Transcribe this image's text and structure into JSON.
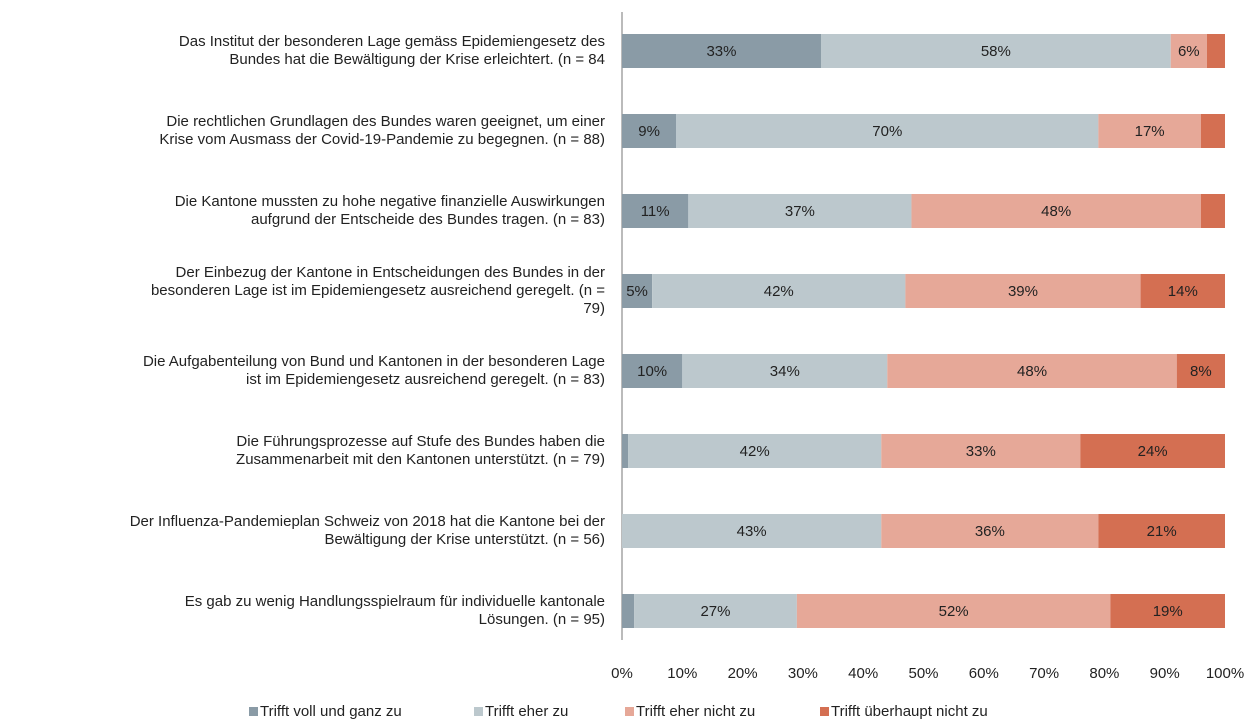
{
  "chart_data": {
    "type": "stacked_barh",
    "categories": [
      "Das Institut der besonderen Lage gemäss Epidemiengesetz des\nBundes hat die Bewältigung der Krise erleichtert. (n = 84",
      "Die rechtlichen Grundlagen des Bundes waren geeignet, um einer\nKrise vom Ausmass der Covid-19-Pandemie zu begegnen. (n = 88)",
      "Die Kantone mussten zu hohe negative finanzielle Auswirkungen\naufgrund der Entscheide des Bundes tragen. (n = 83)",
      "Der Einbezug der Kantone in Entscheidungen des Bundes in der\nbesonderen Lage ist im Epidemiengesetz ausreichend geregelt. (n =\n79)",
      "Die Aufgabenteilung von Bund und Kantonen in der besonderen Lage\nist im Epidemiengesetz ausreichend geregelt. (n = 83)",
      "Die Führungsprozesse auf Stufe des Bundes haben die\nZusammenarbeit mit den Kantonen unterstützt. (n = 79)",
      "Der Influenza-Pandemieplan Schweiz von 2018 hat die Kantone bei der\nBewältigung der Krise unterstützt. (n = 56)",
      "Es gab zu wenig Handlungsspielraum für individuelle kantonale\nLösungen. (n = 95)"
    ],
    "series": [
      {
        "name": "Trifft voll und ganz zu",
        "color": "#8a9ba6",
        "values": [
          33,
          9,
          11,
          5,
          10,
          1,
          0,
          2
        ],
        "value_labels": [
          "33%",
          "9%",
          "11%",
          "5%",
          "10%",
          null,
          null,
          null
        ]
      },
      {
        "name": "Trifft eher zu",
        "color": "#bcc8cd",
        "values": [
          58,
          70,
          37,
          42,
          34,
          42,
          43,
          27
        ],
        "value_labels": [
          "58%",
          "70%",
          "37%",
          "42%",
          "34%",
          "42%",
          "43%",
          "27%"
        ]
      },
      {
        "name": "Trifft eher nicht zu",
        "color": "#e6a898",
        "values": [
          6,
          17,
          48,
          39,
          48,
          33,
          36,
          52
        ],
        "value_labels": [
          "6%",
          "17%",
          "48%",
          "39%",
          "48%",
          "33%",
          "36%",
          "52%"
        ]
      },
      {
        "name": "Trifft überhaupt nicht zu",
        "color": "#d46f52",
        "values": [
          3,
          4,
          4,
          14,
          8,
          24,
          21,
          19
        ],
        "value_labels": [
          null,
          null,
          null,
          "14%",
          "8%",
          "24%",
          "21%",
          "19%"
        ]
      }
    ],
    "xlim": [
      0,
      100
    ],
    "xticks": [
      {
        "value": 0,
        "label": "0%"
      },
      {
        "value": 10,
        "label": "10%"
      },
      {
        "value": 20,
        "label": "20%"
      },
      {
        "value": 30,
        "label": "30%"
      },
      {
        "value": 40,
        "label": "40%"
      },
      {
        "value": 50,
        "label": "50%"
      },
      {
        "value": 60,
        "label": "60%"
      },
      {
        "value": 70,
        "label": "70%"
      },
      {
        "value": 80,
        "label": "80%"
      },
      {
        "value": 90,
        "label": "90%"
      },
      {
        "value": 100,
        "label": "100%"
      }
    ],
    "legend": "bottom"
  }
}
